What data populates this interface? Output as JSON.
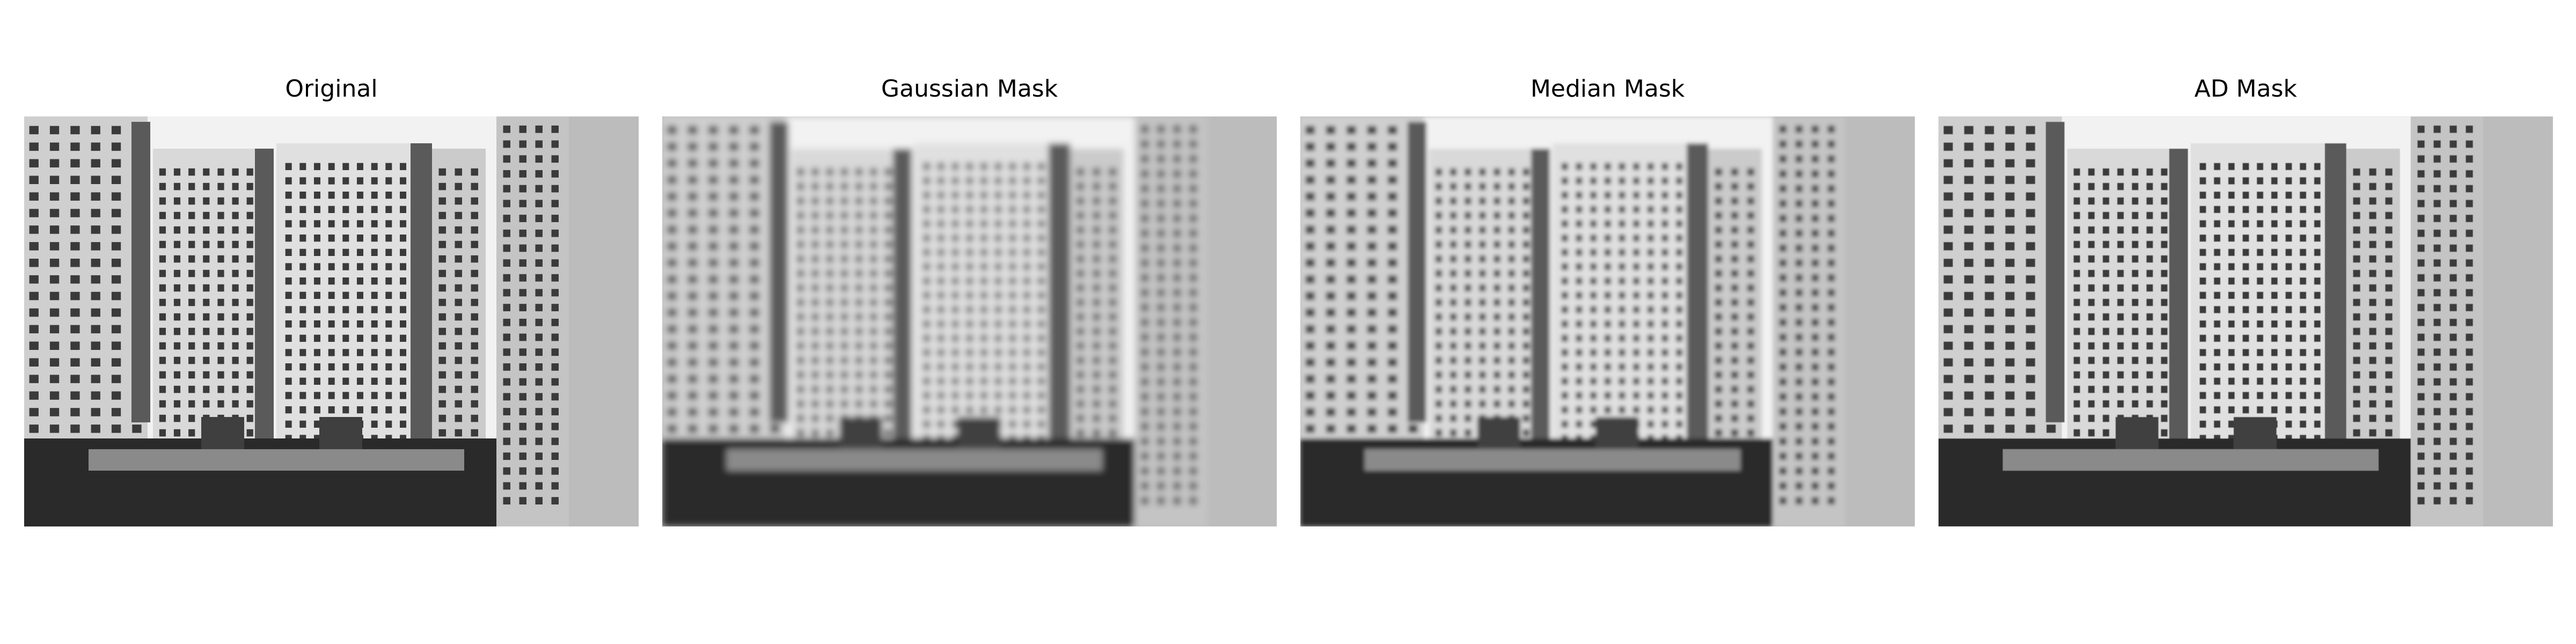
{
  "panels": [
    {
      "title": "Original",
      "filter": "none"
    },
    {
      "title": "Gaussian Mask",
      "filter": "gaussian"
    },
    {
      "title": "Median Mask",
      "filter": "median"
    },
    {
      "title": "AD Mask",
      "filter": "ad"
    }
  ],
  "colors": {
    "background": "#ffffff",
    "sky": "#f2f2f2",
    "building_light": "#d9d9d9",
    "building_dark": "#5a5a5a",
    "window": "#3a3a3a",
    "ground": "#2a2a2a"
  }
}
